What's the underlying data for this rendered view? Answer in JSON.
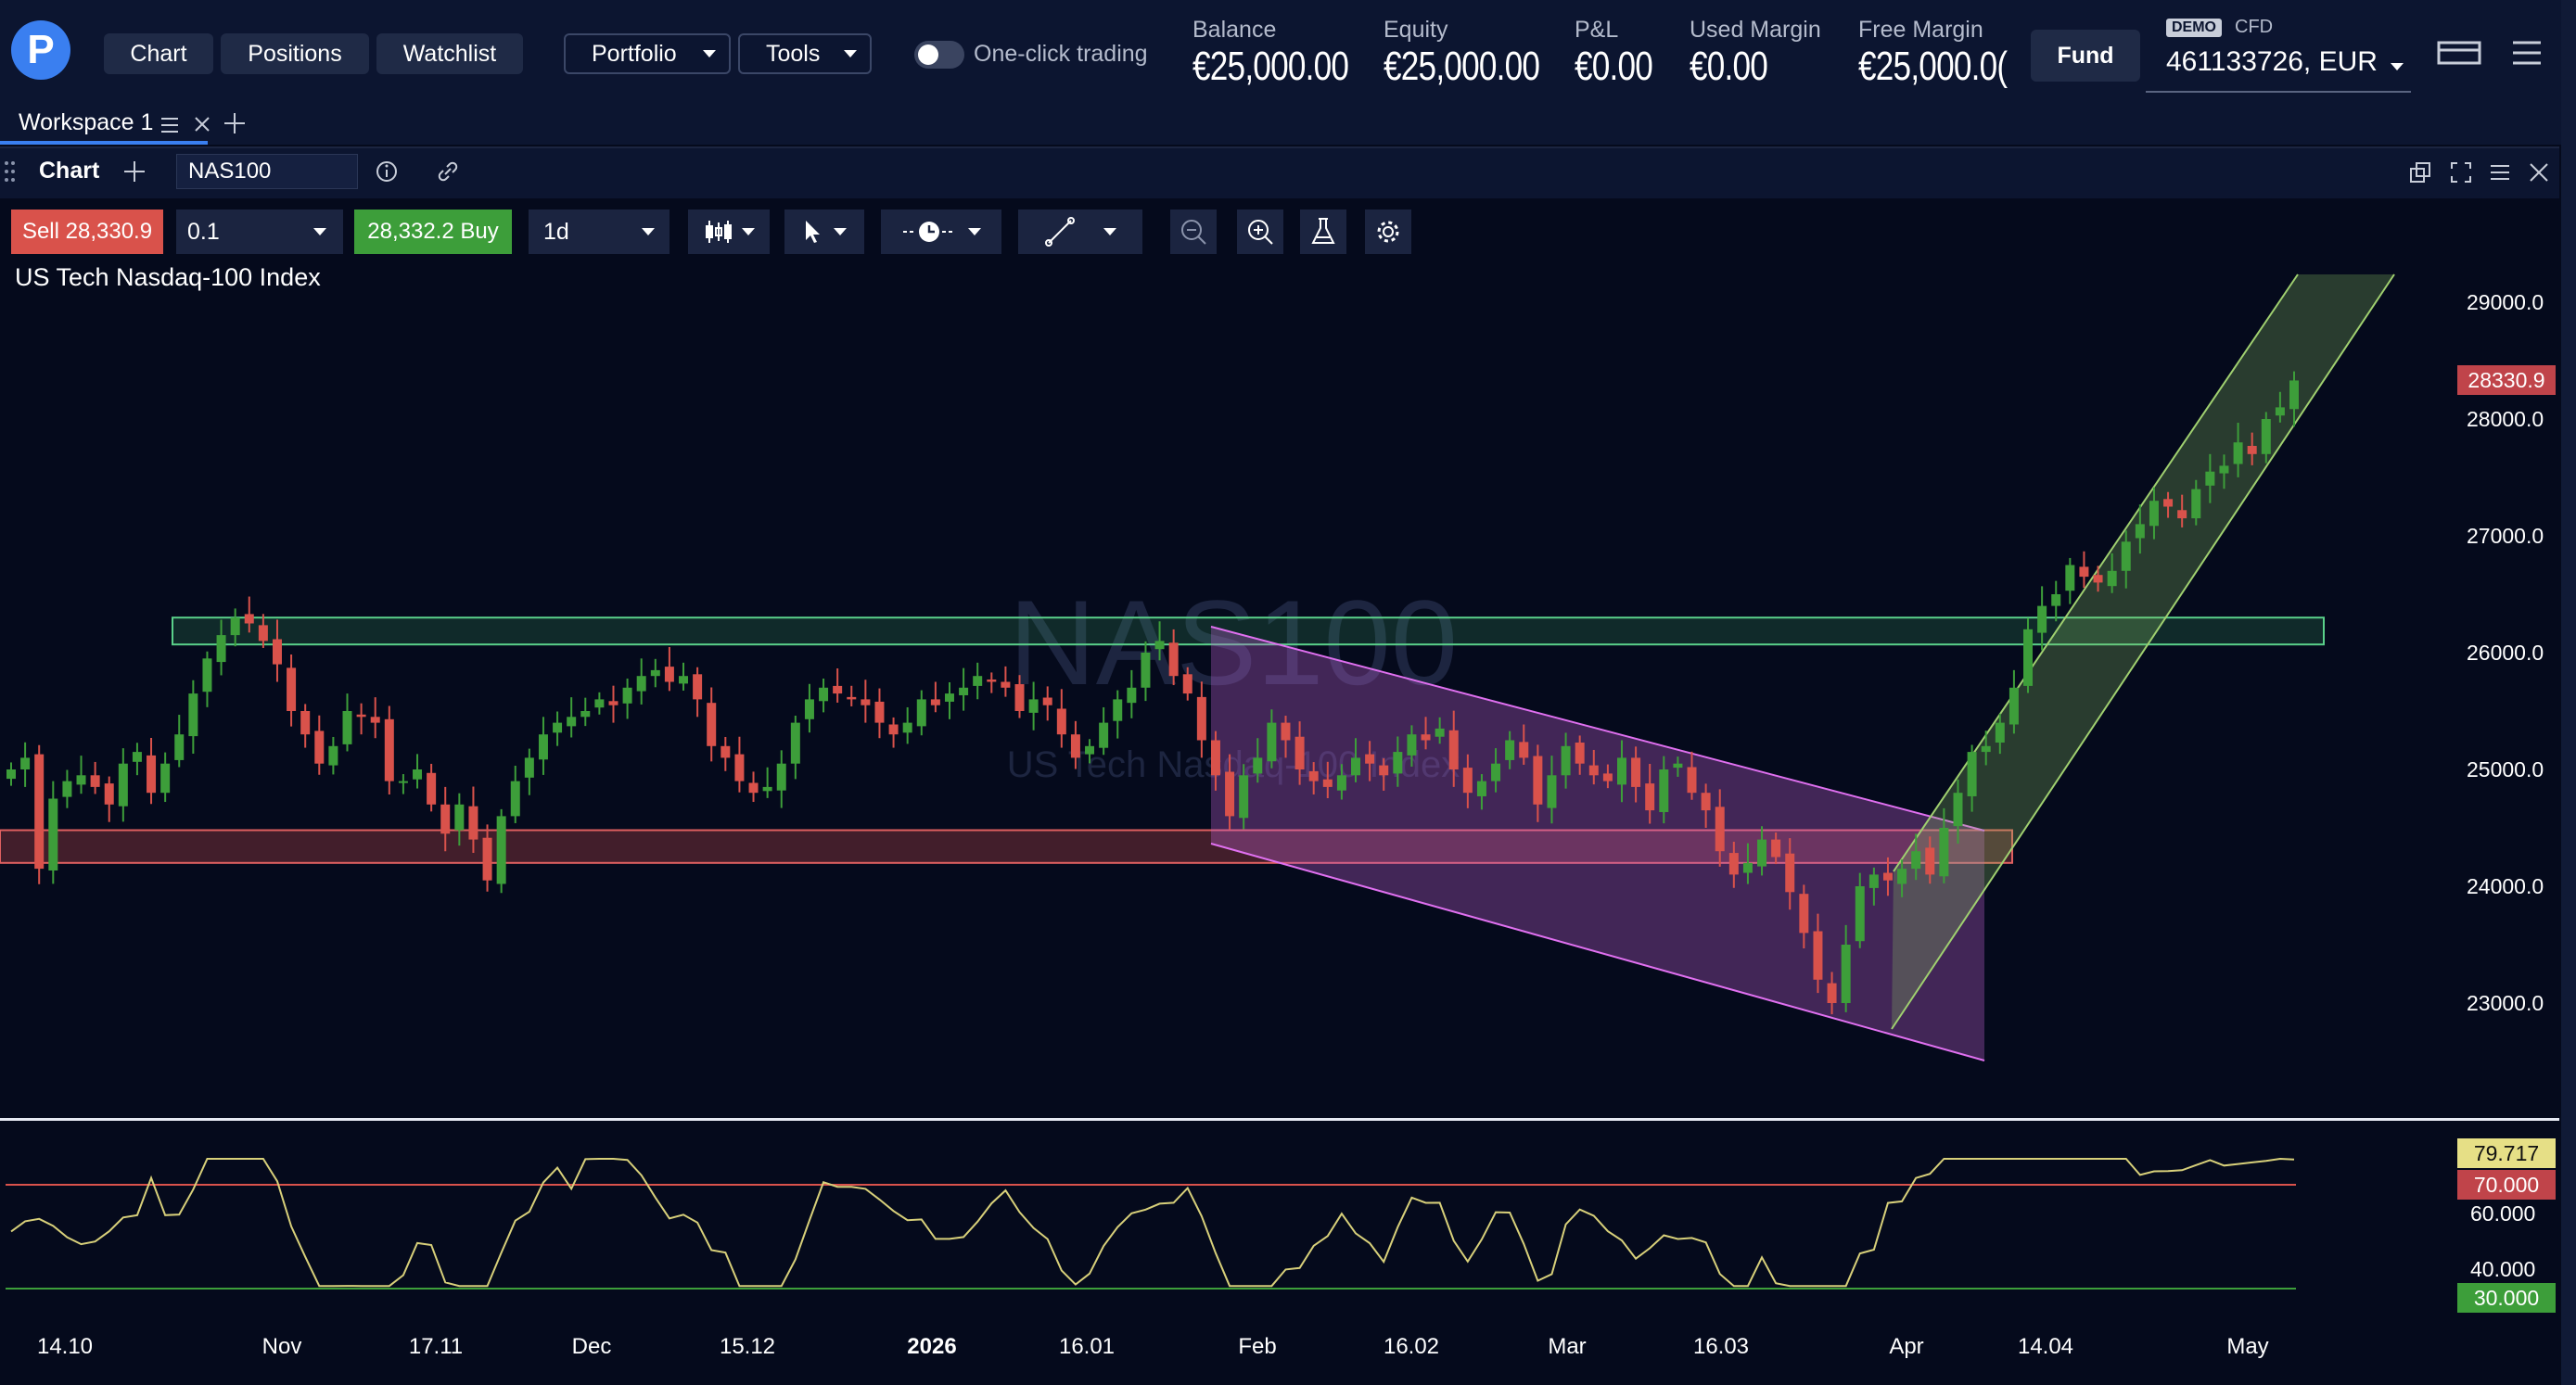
{
  "nav": {
    "chart": "Chart",
    "positions": "Positions",
    "watchlist": "Watchlist",
    "portfolio": "Portfolio",
    "tools": "Tools",
    "one_click": "One-click trading"
  },
  "stats": [
    {
      "label": "Balance",
      "value": "€25,000.00"
    },
    {
      "label": "Equity",
      "value": "€25,000.00"
    },
    {
      "label": "P&L",
      "value": "€0.00"
    },
    {
      "label": "Used Margin",
      "value": "€0.00"
    },
    {
      "label": "Free Margin",
      "value": "€25,000.0("
    }
  ],
  "fund": "Fund",
  "account": {
    "demo": "DEMO",
    "cfd": "CFD",
    "id": "461133726, EUR"
  },
  "workspace": {
    "tab": "Workspace 1"
  },
  "chart_header": {
    "label": "Chart",
    "symbol": "NAS100"
  },
  "toolbar": {
    "sell_label": "Sell",
    "sell_price": "28,330.9",
    "qty": "0.1",
    "buy_price": "28,332.2",
    "buy_label": "Buy",
    "timeframe": "1d"
  },
  "instrument": "US Tech Nasdaq-100 Index",
  "watermark": {
    "symbol": "NAS100",
    "name": "US Tech Nasdaq-100 Index"
  },
  "colors": {
    "up": "#3d9e3a",
    "down": "#d9524b",
    "rsi": "#d8d07a",
    "channel_down": "#c060d0",
    "channel_up": "#8ac060",
    "zone_resist": "#3aa060",
    "zone_support": "#d05050"
  },
  "icons": [
    "candles-icon",
    "cursor-icon",
    "clock-icon",
    "trendline-icon",
    "zoom-out-icon",
    "zoom-in-icon",
    "flask-icon",
    "gear-icon",
    "info-icon",
    "link-icon",
    "popout-icon",
    "expand-icon",
    "menu-icon",
    "close-icon"
  ],
  "chart_data": {
    "type": "candlestick",
    "title": "US Tech Nasdaq-100 Index",
    "y_ticks": [
      "29000.0",
      "28000.0",
      "27000.0",
      "26000.0",
      "25000.0",
      "24000.0",
      "23000.0"
    ],
    "ylim": [
      22400,
      29300
    ],
    "last_price": "28330.9",
    "x_ticks": [
      "14.10",
      "Nov",
      "17.11",
      "Dec",
      "15.12",
      "2026",
      "16.01",
      "Feb",
      "16.02",
      "Mar",
      "16.03",
      "Apr",
      "14.04",
      "May"
    ],
    "zones": [
      {
        "name": "resistance",
        "from": 26070,
        "to": 26300
      },
      {
        "name": "support",
        "from": 24200,
        "to": 24480
      }
    ],
    "closes": [
      25000,
      25100,
      24150,
      24750,
      24900,
      24950,
      24850,
      24700,
      25050,
      25150,
      24800,
      25050,
      25300,
      25650,
      25950,
      26150,
      26300,
      26250,
      26100,
      25900,
      25500,
      25300,
      25050,
      25200,
      25500,
      25450,
      25400,
      24900,
      24900,
      25000,
      24700,
      24450,
      24700,
      24400,
      24050,
      24600,
      24900,
      25100,
      25300,
      25400,
      25450,
      25500,
      25600,
      25550,
      25700,
      25800,
      25850,
      25750,
      25800,
      25600,
      25200,
      25100,
      24900,
      24800,
      24850,
      25050,
      25400,
      25600,
      25700,
      25650,
      25600,
      25550,
      25400,
      25300,
      25400,
      25600,
      25550,
      25650,
      25700,
      25800,
      25750,
      25700,
      25500,
      25600,
      25550,
      25300,
      25100,
      25200,
      25400,
      25600,
      25700,
      26000,
      26100,
      25800,
      25650,
      25250,
      24950,
      24600,
      24950,
      25100,
      25400,
      25250,
      25000,
      24900,
      24850,
      24950,
      25100,
      25050,
      24950,
      25150,
      25300,
      25250,
      25350,
      25000,
      24800,
      24900,
      25050,
      25250,
      25100,
      24700,
      24950,
      25200,
      25050,
      24950,
      24900,
      25100,
      24850,
      24650,
      25000,
      25050,
      24800,
      24650,
      24300,
      24100,
      24200,
      24400,
      24250,
      23950,
      23600,
      23200,
      23000,
      23500,
      24000,
      24100,
      24050,
      24150,
      24300,
      24100,
      24500,
      24800,
      25150,
      25200,
      25400,
      25700,
      26200,
      26400,
      26500,
      26750,
      26650,
      26600,
      26700,
      26950,
      27100,
      27300,
      27250,
      27150,
      27400,
      27550,
      27600,
      27800,
      27700,
      28000,
      28100,
      28330
    ],
    "rsi": {
      "last": "79.717",
      "upper": "70.000",
      "lower": "30.000",
      "ticks": [
        "60.000",
        "40.000"
      ]
    }
  }
}
